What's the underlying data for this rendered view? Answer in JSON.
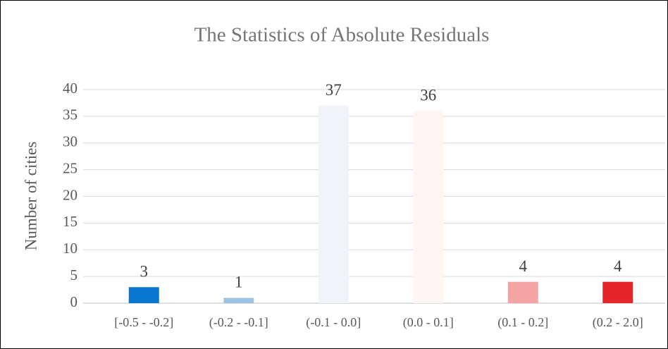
{
  "chart_data": {
    "type": "bar",
    "title": "The Statistics of Absolute Residuals",
    "ylabel": "Number of cities",
    "categories": [
      "[-0.5 - -0.2]",
      "(-0.2 - -0.1]",
      "(-0.1 - 0.0]",
      "(0.0 - 0.1]",
      "(0.1 - 0.2]",
      "(0.2 - 2.0]"
    ],
    "values": [
      3,
      1,
      37,
      36,
      4,
      4
    ],
    "colors": [
      "#0a78d0",
      "#9ec4e4",
      "#eff3fa",
      "#fdf6f3",
      "#f4a4a4",
      "#e4262a"
    ],
    "ylim": [
      0,
      40
    ],
    "yticks": [
      0,
      5,
      10,
      15,
      20,
      25,
      30,
      35,
      40
    ],
    "grid": true
  }
}
